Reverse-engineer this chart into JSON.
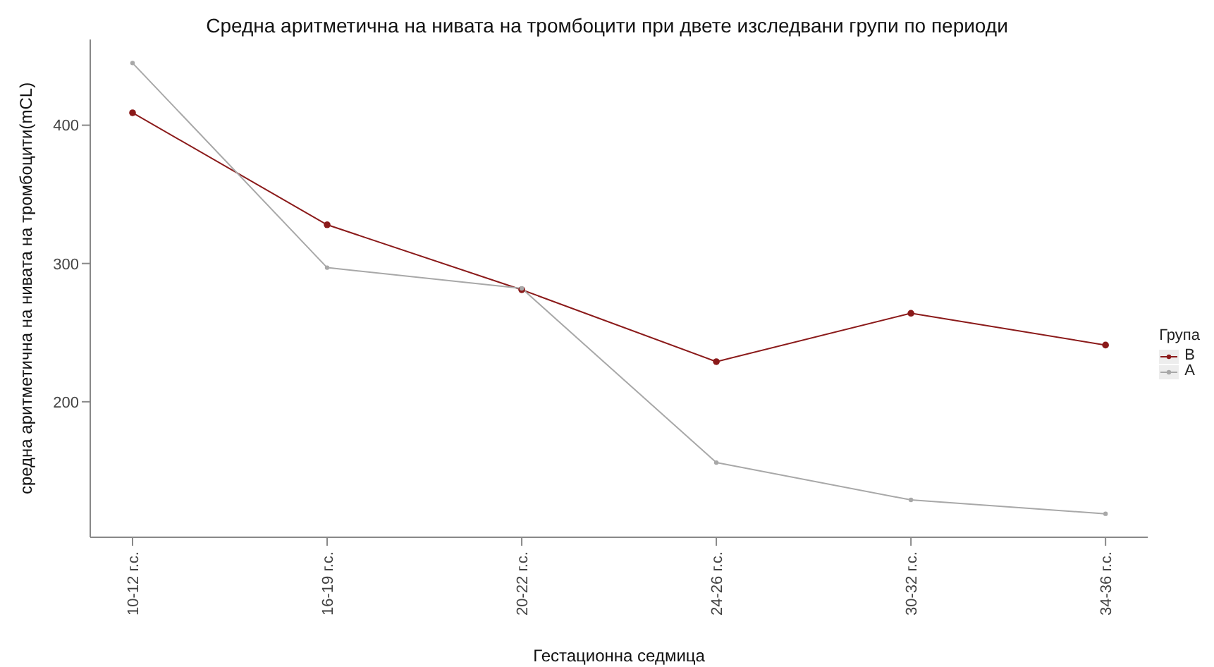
{
  "chart_data": {
    "type": "line",
    "title": "Средна аритметична на нивата на тромбоцити при двете изследвани групи по периоди",
    "xlabel": "Гестационна седмица",
    "ylabel": "средна аритметична на нивата на тромбоцити(mCL)",
    "legend_title": "Група",
    "categories": [
      "10-12 г.с.",
      "16-19 г.с.",
      "20-22 г.с.",
      "24-26 г.с.",
      "30-32 г.с.",
      "34-36 г.с."
    ],
    "series": [
      {
        "name": "B",
        "color": "#8b1a1a",
        "values": [
          409,
          328,
          281,
          229,
          264,
          241
        ]
      },
      {
        "name": "A",
        "color": "#a8a8a8",
        "values": [
          445,
          297,
          282,
          156,
          129,
          119
        ]
      }
    ],
    "ylim": [
      102,
      462
    ],
    "yticks": [
      200,
      300,
      400
    ],
    "grid": false,
    "legend": "right",
    "marker": "circle",
    "line_style": "solid"
  }
}
